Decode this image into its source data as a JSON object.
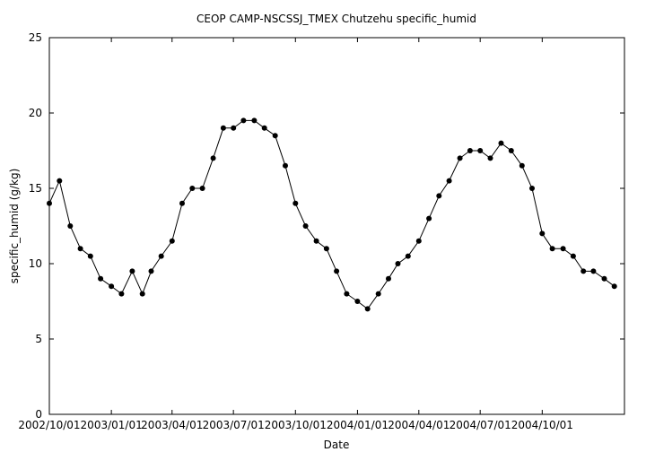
{
  "chart_data": {
    "type": "scatter",
    "title": "CEOP CAMP-NSCSSJ_TMEX Chutzehu  specific_humid",
    "xlabel": "Date",
    "ylabel": "specific_humid (g/kg)",
    "ylim": [
      0,
      25
    ],
    "xlim": [
      "2002-10-01",
      "2005-01-31"
    ],
    "y_ticks": [
      0,
      5,
      10,
      15,
      20,
      25
    ],
    "x_ticks": [
      "2002/10/01",
      "2003/01/01",
      "2003/04/01",
      "2003/07/01",
      "2003/10/01",
      "2004/01/01",
      "2004/04/01",
      "2004/07/01",
      "2004/10/01"
    ],
    "grid": false,
    "legend": "none",
    "marker_color": "#000000",
    "series": [
      {
        "points": [
          [
            "2002-10-01",
            14.0
          ],
          [
            "2002-10-16",
            15.5
          ],
          [
            "2002-11-01",
            12.5
          ],
          [
            "2002-11-16",
            11.0
          ],
          [
            "2002-12-01",
            10.5
          ],
          [
            "2002-12-16",
            9.0
          ],
          [
            "2003-01-01",
            8.5
          ],
          [
            "2003-01-16",
            8.0
          ],
          [
            "2003-02-01",
            9.5
          ],
          [
            "2003-02-16",
            8.0
          ],
          [
            "2003-03-01",
            9.5
          ],
          [
            "2003-03-16",
            10.5
          ],
          [
            "2003-04-01",
            11.5
          ],
          [
            "2003-04-16",
            14.0
          ],
          [
            "2003-05-01",
            15.0
          ],
          [
            "2003-05-16",
            15.0
          ],
          [
            "2003-06-01",
            17.0
          ],
          [
            "2003-06-16",
            19.0
          ],
          [
            "2003-07-01",
            19.0
          ],
          [
            "2003-07-16",
            19.5
          ],
          [
            "2003-08-01",
            19.5
          ],
          [
            "2003-08-16",
            19.0
          ],
          [
            "2003-09-01",
            18.5
          ],
          [
            "2003-09-16",
            16.5
          ],
          [
            "2003-10-01",
            14.0
          ],
          [
            "2003-10-16",
            12.5
          ],
          [
            "2003-11-01",
            11.5
          ],
          [
            "2003-11-16",
            11.0
          ],
          [
            "2003-12-01",
            9.5
          ],
          [
            "2003-12-16",
            8.0
          ],
          [
            "2004-01-01",
            7.5
          ],
          [
            "2004-01-16",
            7.0
          ],
          [
            "2004-02-01",
            8.0
          ],
          [
            "2004-02-16",
            9.0
          ],
          [
            "2004-03-01",
            10.0
          ],
          [
            "2004-03-16",
            10.5
          ],
          [
            "2004-04-01",
            11.5
          ],
          [
            "2004-04-16",
            13.0
          ],
          [
            "2004-05-01",
            14.5
          ],
          [
            "2004-05-16",
            15.5
          ],
          [
            "2004-06-01",
            17.0
          ],
          [
            "2004-06-16",
            17.5
          ],
          [
            "2004-07-01",
            17.5
          ],
          [
            "2004-07-16",
            17.0
          ],
          [
            "2004-08-01",
            18.0
          ],
          [
            "2004-08-16",
            17.5
          ],
          [
            "2004-09-01",
            16.5
          ],
          [
            "2004-09-16",
            15.0
          ],
          [
            "2004-10-01",
            12.0
          ],
          [
            "2004-10-16",
            11.0
          ],
          [
            "2004-11-01",
            11.0
          ],
          [
            "2004-11-16",
            10.5
          ],
          [
            "2004-12-01",
            9.5
          ],
          [
            "2004-12-16",
            9.5
          ],
          [
            "2005-01-01",
            9.0
          ],
          [
            "2005-01-16",
            8.5
          ]
        ]
      }
    ]
  }
}
